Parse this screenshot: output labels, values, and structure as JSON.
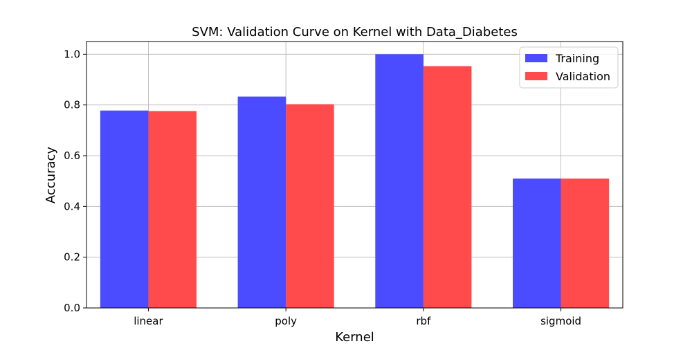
{
  "chart_data": {
    "type": "bar",
    "title": "SVM: Validation Curve on Kernel with Data_Diabetes",
    "xlabel": "Kernel",
    "ylabel": "Accuracy",
    "categories": [
      "linear",
      "poly",
      "rbf",
      "sigmoid"
    ],
    "series": [
      {
        "name": "Training",
        "color": "#4b4bff",
        "values": [
          0.778,
          0.833,
          1.0,
          0.51
        ]
      },
      {
        "name": "Validation",
        "color": "#ff4b4b",
        "values": [
          0.776,
          0.803,
          0.953,
          0.51
        ]
      }
    ],
    "ylim": [
      0,
      1.05
    ],
    "yticks": [
      0.0,
      0.2,
      0.4,
      0.6,
      0.8,
      1.0
    ],
    "ytick_labels": [
      "0.0",
      "0.2",
      "0.4",
      "0.6",
      "0.8",
      "1.0"
    ],
    "grid": true,
    "legend_position": "top-right"
  }
}
